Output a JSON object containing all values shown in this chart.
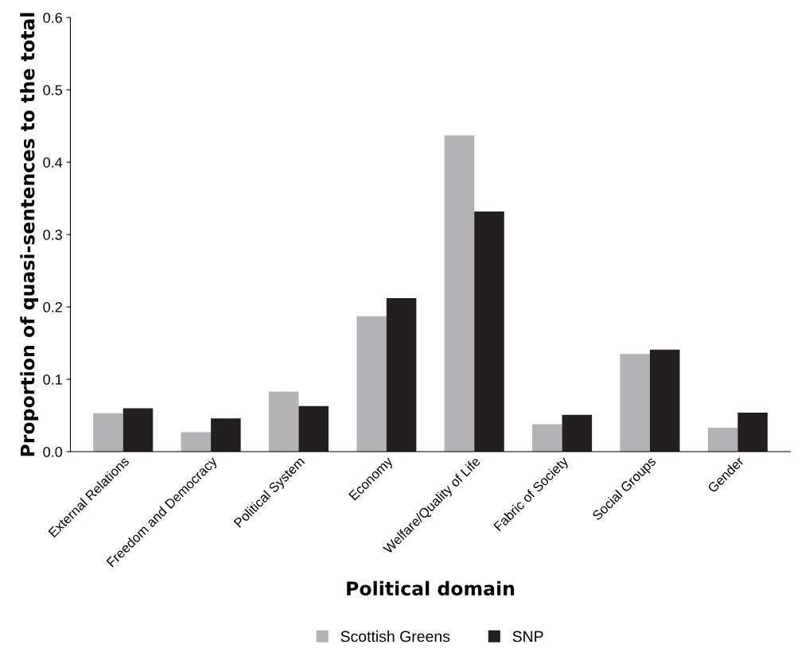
{
  "chart_data": {
    "type": "bar",
    "xlabel": "Political domain",
    "ylabel": "Proportion of quasi-sentences to the total",
    "categories": [
      "External Relations",
      "Freedom and Democracy",
      "Political System",
      "Economy",
      "Welfare/Quality of Life",
      "Fabric of Society",
      "Social Groups",
      "Gender"
    ],
    "series": [
      {
        "name": "Scottish Greens",
        "color": "#b3b3b5",
        "values": [
          0.053,
          0.027,
          0.083,
          0.187,
          0.437,
          0.038,
          0.135,
          0.033
        ]
      },
      {
        "name": "SNP",
        "color": "#231f20",
        "values": [
          0.06,
          0.046,
          0.063,
          0.212,
          0.332,
          0.051,
          0.141,
          0.054
        ]
      }
    ],
    "ylim": [
      0,
      0.6
    ],
    "yticks": [
      {
        "value": 0,
        "label": "0.0"
      },
      {
        "value": 0.1,
        "label": "0.1"
      },
      {
        "value": 0.2,
        "label": "0.2"
      },
      {
        "value": 0.3,
        "label": "0.3"
      },
      {
        "value": 0.4,
        "label": "0.4"
      },
      {
        "value": 0.5,
        "label": "0.5"
      },
      {
        "value": 0.6,
        "label": "0.6"
      }
    ],
    "grid": false,
    "legend": "bottom"
  }
}
